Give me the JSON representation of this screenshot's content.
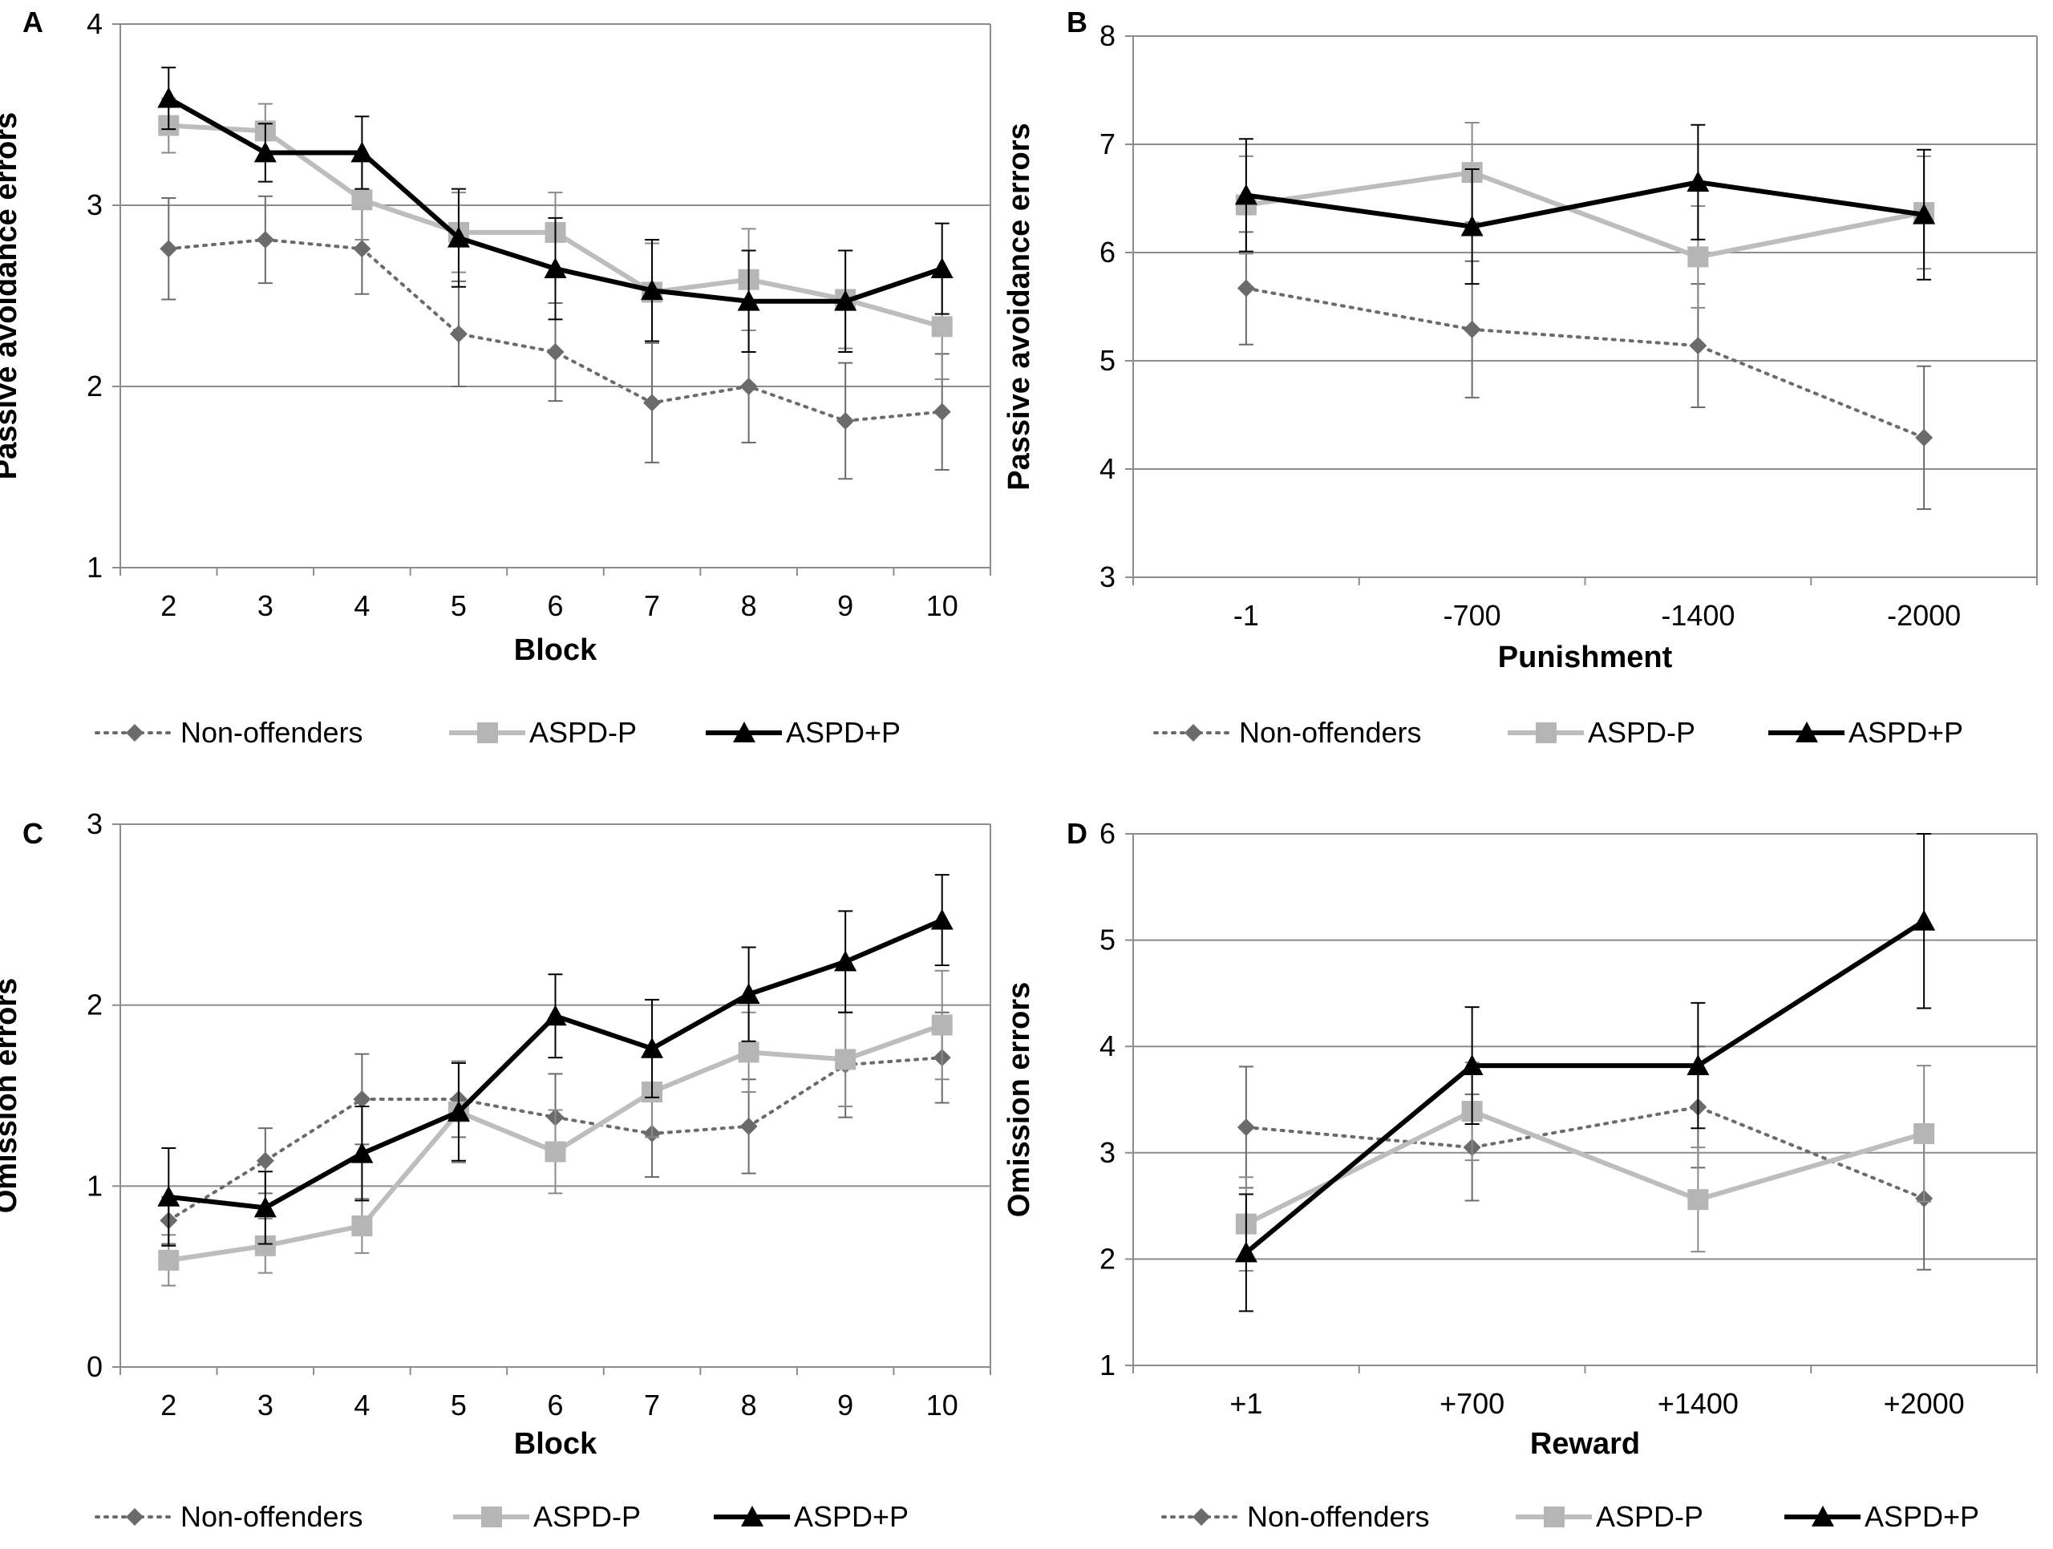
{
  "chart_data": [
    {
      "panel_label": "A",
      "type": "line",
      "xlabel": "Block",
      "ylabel": "Passive avoidance errors",
      "categories": [
        "2",
        "3",
        "4",
        "5",
        "6",
        "7",
        "8",
        "9",
        "10"
      ],
      "ylim": [
        1,
        4
      ],
      "yticks": [
        1,
        2,
        3,
        4
      ],
      "grid": true,
      "legend_position": "bottom",
      "series": [
        {
          "name": "Non-offenders",
          "values": [
            2.76,
            2.81,
            2.76,
            2.29,
            2.19,
            1.91,
            2.0,
            1.81,
            1.86
          ],
          "err": [
            0.28,
            0.24,
            0.25,
            0.29,
            0.27,
            0.33,
            0.31,
            0.32,
            0.32
          ]
        },
        {
          "name": "ASPD-P",
          "values": [
            3.44,
            3.41,
            3.03,
            2.85,
            2.85,
            2.52,
            2.59,
            2.48,
            2.33
          ],
          "err": [
            0.15,
            0.15,
            0.22,
            0.22,
            0.22,
            0.27,
            0.28,
            0.27,
            0.29
          ]
        },
        {
          "name": "ASPD+P",
          "values": [
            3.59,
            3.29,
            3.29,
            2.82,
            2.65,
            2.53,
            2.47,
            2.47,
            2.65
          ],
          "err": [
            0.17,
            0.16,
            0.2,
            0.27,
            0.28,
            0.28,
            0.28,
            0.28,
            0.25
          ]
        }
      ]
    },
    {
      "panel_label": "B",
      "type": "line",
      "xlabel": "Punishment",
      "ylabel": "Passive avoidance errors",
      "categories": [
        "-1",
        "-700",
        "-1400",
        "-2000"
      ],
      "ylim": [
        3,
        8
      ],
      "yticks": [
        3,
        4,
        5,
        6,
        7,
        8
      ],
      "grid": true,
      "legend_position": "bottom",
      "series": [
        {
          "name": "Non-offenders",
          "values": [
            5.67,
            5.29,
            5.14,
            4.29
          ],
          "err": [
            0.52,
            0.63,
            0.57,
            0.66
          ]
        },
        {
          "name": "ASPD-P",
          "values": [
            6.44,
            6.74,
            5.96,
            6.37
          ],
          "err": [
            0.45,
            0.46,
            0.47,
            0.52
          ]
        },
        {
          "name": "ASPD+P",
          "values": [
            6.53,
            6.24,
            6.65,
            6.35
          ],
          "err": [
            0.52,
            0.53,
            0.53,
            0.6
          ]
        }
      ]
    },
    {
      "panel_label": "C",
      "type": "line",
      "xlabel": "Block",
      "ylabel": "Omission errors",
      "categories": [
        "2",
        "3",
        "4",
        "5",
        "6",
        "7",
        "8",
        "9",
        "10"
      ],
      "ylim": [
        0,
        3
      ],
      "yticks": [
        0,
        1,
        2,
        3
      ],
      "grid": true,
      "legend_position": "bottom",
      "series": [
        {
          "name": "Non-offenders",
          "values": [
            0.81,
            1.14,
            1.48,
            1.48,
            1.38,
            1.29,
            1.33,
            1.67,
            1.71
          ],
          "err": [
            0.13,
            0.18,
            0.25,
            0.21,
            0.24,
            0.24,
            0.26,
            0.29,
            0.25
          ]
        },
        {
          "name": "ASPD-P",
          "values": [
            0.59,
            0.67,
            0.78,
            1.41,
            1.19,
            1.52,
            1.74,
            1.7,
            1.89
          ],
          "err": [
            0.14,
            0.15,
            0.15,
            0.28,
            0.23,
            0.25,
            0.22,
            0.26,
            0.3
          ]
        },
        {
          "name": "ASPD+P",
          "values": [
            0.94,
            0.88,
            1.18,
            1.41,
            1.94,
            1.76,
            2.06,
            2.24,
            2.47
          ],
          "err": [
            0.27,
            0.2,
            0.26,
            0.27,
            0.23,
            0.27,
            0.26,
            0.28,
            0.25
          ]
        }
      ]
    },
    {
      "panel_label": "D",
      "type": "line",
      "xlabel": "Reward",
      "ylabel": "Omission errors",
      "categories": [
        "+1",
        "+700",
        "+1400",
        "+2000"
      ],
      "ylim": [
        1,
        6
      ],
      "yticks": [
        1,
        2,
        3,
        4,
        5,
        6
      ],
      "grid": true,
      "legend_position": "bottom",
      "series": [
        {
          "name": "Non-offenders",
          "values": [
            3.24,
            3.05,
            3.43,
            2.57
          ],
          "err": [
            0.57,
            0.5,
            0.57,
            0.67
          ]
        },
        {
          "name": "ASPD-P",
          "values": [
            2.33,
            3.39,
            2.56,
            3.18
          ],
          "err": [
            0.44,
            0.46,
            0.49,
            0.64
          ]
        },
        {
          "name": "ASPD+P",
          "values": [
            2.06,
            3.82,
            3.82,
            5.18
          ],
          "err": [
            0.55,
            0.55,
            0.59,
            0.82
          ]
        }
      ]
    }
  ]
}
